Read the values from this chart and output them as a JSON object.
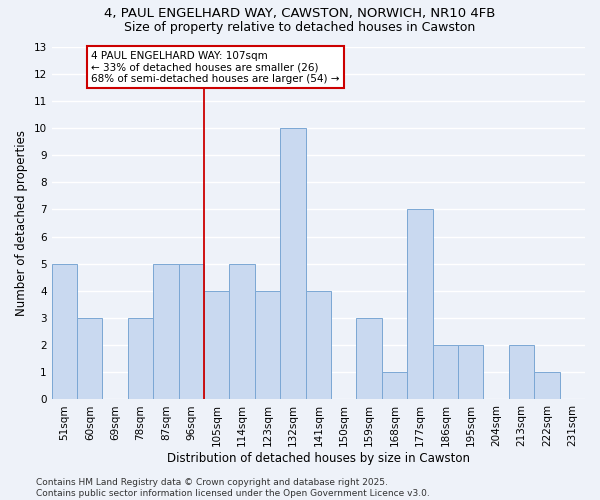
{
  "title_line1": "4, PAUL ENGELHARD WAY, CAWSTON, NORWICH, NR10 4FB",
  "title_line2": "Size of property relative to detached houses in Cawston",
  "xlabel": "Distribution of detached houses by size in Cawston",
  "ylabel": "Number of detached properties",
  "bin_labels": [
    "51sqm",
    "60sqm",
    "69sqm",
    "78sqm",
    "87sqm",
    "96sqm",
    "105sqm",
    "114sqm",
    "123sqm",
    "132sqm",
    "141sqm",
    "150sqm",
    "159sqm",
    "168sqm",
    "177sqm",
    "186sqm",
    "195sqm",
    "204sqm",
    "213sqm",
    "222sqm",
    "231sqm"
  ],
  "bin_values": [
    5,
    3,
    0,
    3,
    5,
    5,
    4,
    5,
    4,
    10,
    4,
    0,
    3,
    1,
    7,
    2,
    2,
    0,
    2,
    1,
    0
  ],
  "bar_color": "#c9d9f0",
  "bar_edge_color": "#7ba7d4",
  "highlight_line_color": "#cc0000",
  "highlight_bin_index": 6,
  "annotation_text_line1": "4 PAUL ENGELHARD WAY: 107sqm",
  "annotation_text_line2": "← 33% of detached houses are smaller (26)",
  "annotation_text_line3": "68% of semi-detached houses are larger (54) →",
  "annotation_box_color": "white",
  "annotation_box_edge_color": "#cc0000",
  "ylim": [
    0,
    13
  ],
  "yticks": [
    0,
    1,
    2,
    3,
    4,
    5,
    6,
    7,
    8,
    9,
    10,
    11,
    12,
    13
  ],
  "footer_text": "Contains HM Land Registry data © Crown copyright and database right 2025.\nContains public sector information licensed under the Open Government Licence v3.0.",
  "bg_color": "#eef2f9",
  "plot_bg_color": "#eef2f9",
  "grid_color": "#ffffff",
  "title_fontsize": 9.5,
  "subtitle_fontsize": 9,
  "axis_label_fontsize": 8.5,
  "tick_fontsize": 7.5,
  "annotation_fontsize": 7.5,
  "footer_fontsize": 6.5
}
